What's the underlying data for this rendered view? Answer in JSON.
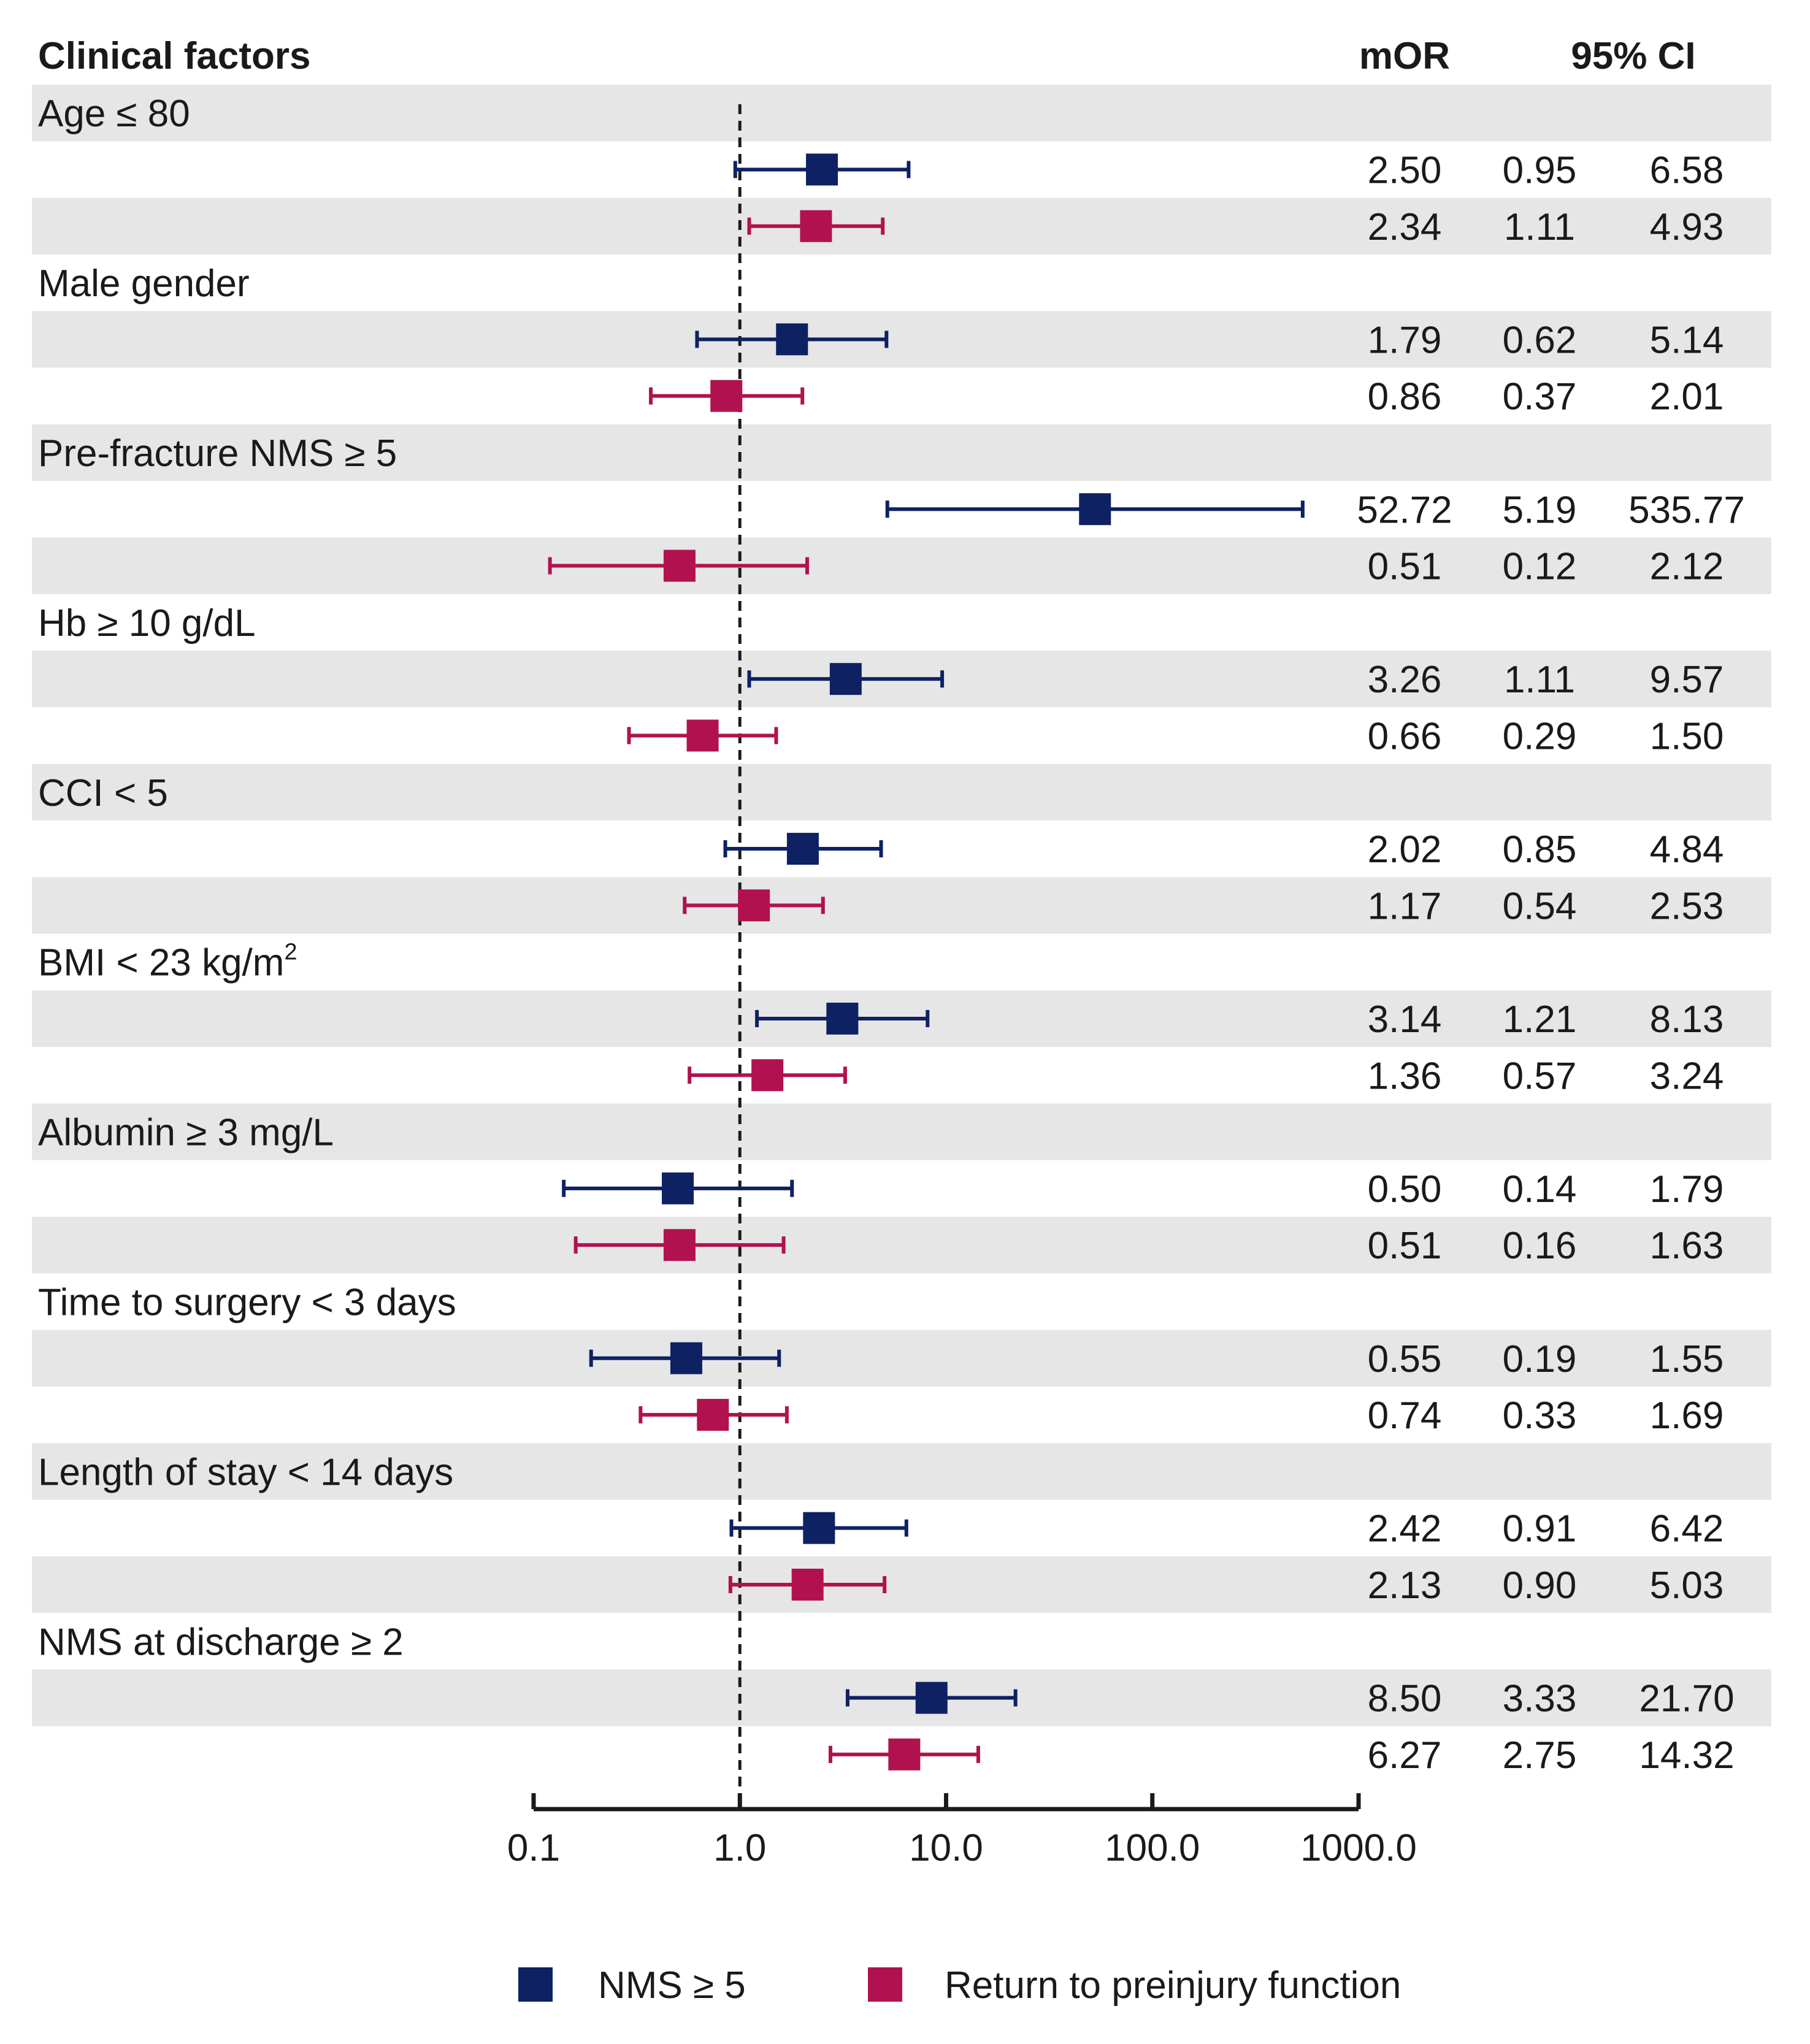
{
  "headers": {
    "factor": "Clinical factors",
    "mor": "mOR",
    "ci": "95% CI"
  },
  "legend": [
    {
      "label": "NMS ≥ 5",
      "color": "#0e2163"
    },
    {
      "label": "Return to preinjury function",
      "color": "#b1124f"
    }
  ],
  "colors": {
    "band": "#e6e6e6",
    "nms": "#0e2163",
    "ret": "#b1124f",
    "ref": "#1a1a1a"
  },
  "chart_data": {
    "type": "forest",
    "scale": "log10",
    "xlim": [
      0.1,
      1000
    ],
    "x_ticks": [
      0.1,
      1,
      10,
      100,
      1000
    ],
    "x_tick_labels": [
      "0.1",
      "1.0",
      "10.0",
      "100.0",
      "1000.0"
    ],
    "reference_line": 1,
    "series_names": [
      "NMS ≥ 5",
      "Return to preinjury function"
    ],
    "groups": [
      {
        "factor": "Age ≤ 80",
        "rows": [
          {
            "series": "nms",
            "mor": "2.50",
            "lo": "0.95",
            "hi": "6.58"
          },
          {
            "series": "ret",
            "mor": "2.34",
            "lo": "1.11",
            "hi": "4.93"
          }
        ]
      },
      {
        "factor": "Male gender",
        "rows": [
          {
            "series": "nms",
            "mor": "1.79",
            "lo": "0.62",
            "hi": "5.14"
          },
          {
            "series": "ret",
            "mor": "0.86",
            "lo": "0.37",
            "hi": "2.01"
          }
        ]
      },
      {
        "factor": "Pre-fracture NMS ≥ 5",
        "rows": [
          {
            "series": "nms",
            "mor": "52.72",
            "lo": "5.19",
            "hi": "535.77"
          },
          {
            "series": "ret",
            "mor": "0.51",
            "lo": "0.12",
            "hi": "2.12"
          }
        ]
      },
      {
        "factor": "Hb ≥ 10 g/dL",
        "rows": [
          {
            "series": "nms",
            "mor": "3.26",
            "lo": "1.11",
            "hi": "9.57"
          },
          {
            "series": "ret",
            "mor": "0.66",
            "lo": "0.29",
            "hi": "1.50"
          }
        ]
      },
      {
        "factor": "CCI < 5",
        "rows": [
          {
            "series": "nms",
            "mor": "2.02",
            "lo": "0.85",
            "hi": "4.84"
          },
          {
            "series": "ret",
            "mor": "1.17",
            "lo": "0.54",
            "hi": "2.53"
          }
        ]
      },
      {
        "factor": "BMI < 23 kg/m",
        "factor_sup": "2",
        "rows": [
          {
            "series": "nms",
            "mor": "3.14",
            "lo": "1.21",
            "hi": "8.13"
          },
          {
            "series": "ret",
            "mor": "1.36",
            "lo": "0.57",
            "hi": "3.24"
          }
        ]
      },
      {
        "factor": "Albumin ≥ 3 mg/L",
        "rows": [
          {
            "series": "nms",
            "mor": "0.50",
            "lo": "0.14",
            "hi": "1.79"
          },
          {
            "series": "ret",
            "mor": "0.51",
            "lo": "0.16",
            "hi": "1.63"
          }
        ]
      },
      {
        "factor": "Time to surgery < 3 days",
        "rows": [
          {
            "series": "nms",
            "mor": "0.55",
            "lo": "0.19",
            "hi": "1.55"
          },
          {
            "series": "ret",
            "mor": "0.74",
            "lo": "0.33",
            "hi": "1.69"
          }
        ]
      },
      {
        "factor": "Length of stay < 14 days",
        "rows": [
          {
            "series": "nms",
            "mor": "2.42",
            "lo": "0.91",
            "hi": "6.42"
          },
          {
            "series": "ret",
            "mor": "2.13",
            "lo": "0.90",
            "hi": "5.03"
          }
        ]
      },
      {
        "factor": "NMS at discharge ≥ 2",
        "rows": [
          {
            "series": "nms",
            "mor": "8.50",
            "lo": "3.33",
            "hi": "21.70"
          },
          {
            "series": "ret",
            "mor": "6.27",
            "lo": "2.75",
            "hi": "14.32"
          }
        ]
      }
    ]
  }
}
